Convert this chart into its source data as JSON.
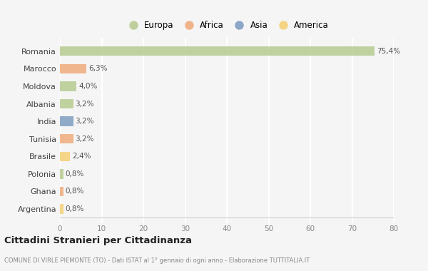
{
  "countries": [
    "Romania",
    "Marocco",
    "Moldova",
    "Albania",
    "India",
    "Tunisia",
    "Brasile",
    "Polonia",
    "Ghana",
    "Argentina"
  ],
  "values": [
    75.4,
    6.3,
    4.0,
    3.2,
    3.2,
    3.2,
    2.4,
    0.8,
    0.8,
    0.8
  ],
  "labels": [
    "75,4%",
    "6,3%",
    "4,0%",
    "3,2%",
    "3,2%",
    "3,2%",
    "2,4%",
    "0,8%",
    "0,8%",
    "0,8%"
  ],
  "colors": [
    "#b5c98e",
    "#f0a878",
    "#b5c98e",
    "#b5c98e",
    "#7a9abf",
    "#f0a878",
    "#f5d070",
    "#b5c98e",
    "#f0a878",
    "#f5d070"
  ],
  "legend_labels": [
    "Europa",
    "Africa",
    "Asia",
    "America"
  ],
  "legend_colors": [
    "#b5c98e",
    "#f0a878",
    "#7a9abf",
    "#f5d070"
  ],
  "title": "Cittadini Stranieri per Cittadinanza",
  "subtitle": "COMUNE DI VIRLE PIEMONTE (TO) - Dati ISTAT al 1° gennaio di ogni anno - Elaborazione TUTTITALIA.IT",
  "xlim": [
    0,
    80
  ],
  "xticks": [
    0,
    10,
    20,
    30,
    40,
    50,
    60,
    70,
    80
  ],
  "bg_color": "#f5f5f5",
  "grid_color": "#ffffff",
  "bar_height": 0.55
}
